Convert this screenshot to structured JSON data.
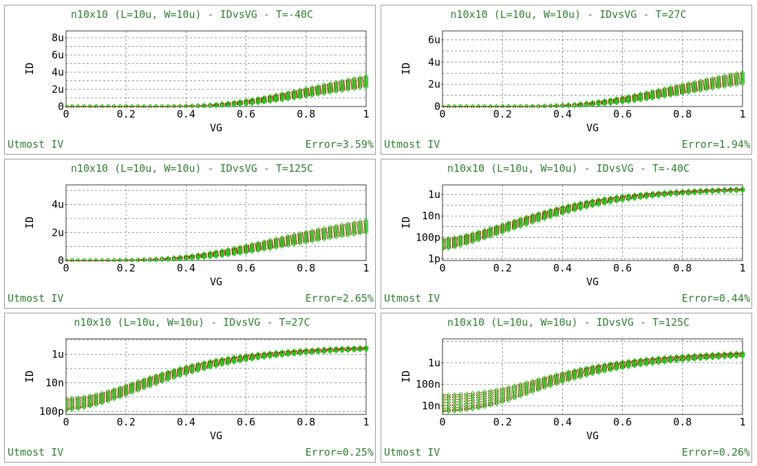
{
  "colors": {
    "measured": "#22cc22",
    "simulated": "#cc0000",
    "text_green": "#2e7d2e",
    "frame": "#555555",
    "grid": "#777777"
  },
  "chart_data": [
    {
      "type": "scatter",
      "title": "n10x10 (L=10u, W=10u) - IDvsVG - T=-40C",
      "xlabel": "VG",
      "ylabel": "ID",
      "xlim": [
        0,
        1
      ],
      "ylim": [
        0,
        8.8e-06
      ],
      "yscale": "linear",
      "xticks": [
        "0",
        "0.2",
        "0.4",
        "0.6",
        "0.8",
        "1"
      ],
      "yticks": [
        {
          "value": 0,
          "label": "0"
        },
        {
          "value": 2e-06,
          "label": "2u"
        },
        {
          "value": 4e-06,
          "label": "4u"
        },
        {
          "value": 6e-06,
          "label": "6u"
        },
        {
          "value": 8e-06,
          "label": "8u"
        }
      ],
      "grid": true,
      "model": {
        "vt": 0.43,
        "n": 0.045,
        "k": 1.5e-05,
        "lo": 6.2e-06,
        "hi": 8e-06
      },
      "footer_left": "Utmost IV",
      "footer_right": "Error=3.59%"
    },
    {
      "type": "scatter",
      "title": "n10x10 (L=10u, W=10u) - IDvsVG - T=27C",
      "xlabel": "VG",
      "ylabel": "ID",
      "xlim": [
        0,
        1
      ],
      "ylim": [
        0,
        6.8e-06
      ],
      "yscale": "linear",
      "xticks": [
        "0",
        "0.2",
        "0.4",
        "0.6",
        "0.8",
        "1"
      ],
      "yticks": [
        {
          "value": 0,
          "label": "0"
        },
        {
          "value": 2e-06,
          "label": "2u"
        },
        {
          "value": 4e-06,
          "label": "4u"
        },
        {
          "value": 6e-06,
          "label": "6u"
        }
      ],
      "grid": true,
      "model": {
        "vt": 0.38,
        "n": 0.05,
        "k": 1.2e-05,
        "lo": 5e-06,
        "hi": 6.4e-06
      },
      "footer_left": "Utmost IV",
      "footer_right": "Error=1.94%"
    },
    {
      "type": "scatter",
      "title": "n10x10 (L=10u, W=10u) - IDvsVG - T=125C",
      "xlabel": "VG",
      "ylabel": "ID",
      "xlim": [
        0,
        1
      ],
      "ylim": [
        0,
        5.4e-06
      ],
      "yscale": "linear",
      "xticks": [
        "0",
        "0.2",
        "0.4",
        "0.6",
        "0.8",
        "1"
      ],
      "yticks": [
        {
          "value": 0,
          "label": "0"
        },
        {
          "value": 2e-06,
          "label": "2u"
        },
        {
          "value": 4e-06,
          "label": "4u"
        }
      ],
      "grid": true,
      "model": {
        "vt": 0.3,
        "n": 0.06,
        "k": 1e-05,
        "lo": 4.3e-06,
        "hi": 5.3e-06
      },
      "footer_left": "Utmost IV",
      "footer_right": "Error=2.65%"
    },
    {
      "type": "scatter",
      "title": "n10x10 (L=10u, W=10u) - IDvsVG - T=-40C",
      "xlabel": "VG",
      "ylabel": "ID",
      "xlim": [
        0,
        1
      ],
      "ylim": [
        7e-13,
        8e-06
      ],
      "yscale": "log",
      "xticks": [
        "0",
        "0.2",
        "0.4",
        "0.6",
        "0.8",
        "1"
      ],
      "yticks": [
        {
          "value": 1e-12,
          "label": "1p"
        },
        {
          "value": 1e-10,
          "label": "100p"
        },
        {
          "value": 1e-08,
          "label": "10n"
        },
        {
          "value": 1e-06,
          "label": "1u"
        }
      ],
      "grid": true,
      "model": {
        "vt": 0.43,
        "n": 0.045,
        "k": 1.5e-05,
        "lo": 4.6e-12,
        "hi": 4.6e-11,
        "sat_lo": 6.2e-06,
        "sat_hi": 8e-06
      },
      "footer_left": "Utmost IV",
      "footer_right": "Error=0.44%"
    },
    {
      "type": "scatter",
      "title": "n10x10 (L=10u, W=10u) - IDvsVG - T=27C",
      "xlabel": "VG",
      "ylabel": "ID",
      "xlim": [
        0,
        1
      ],
      "ylim": [
        6e-11,
        1.2e-05
      ],
      "yscale": "log",
      "xticks": [
        "0",
        "0.2",
        "0.4",
        "0.6",
        "0.8",
        "1"
      ],
      "yticks": [
        {
          "value": 1e-10,
          "label": "100p"
        },
        {
          "value": 1e-08,
          "label": "10n"
        },
        {
          "value": 1e-06,
          "label": "1u"
        }
      ],
      "grid": true,
      "model": {
        "vt": 0.38,
        "n": 0.05,
        "k": 1.2e-05,
        "lo": 1e-10,
        "hi": 6e-10,
        "sat_lo": 5e-06,
        "sat_hi": 6.4e-06
      },
      "footer_left": "Utmost IV",
      "footer_right": "Error=0.25%"
    },
    {
      "type": "scatter",
      "title": "n10x10 (L=10u, W=10u) - IDvsVG - T=125C",
      "xlabel": "VG",
      "ylabel": "ID",
      "xlim": [
        0,
        1
      ],
      "ylim": [
        4e-09,
        1.3e-05
      ],
      "yscale": "log",
      "xticks": [
        "0",
        "0.2",
        "0.4",
        "0.6",
        "0.8",
        "1"
      ],
      "yticks": [
        {
          "value": 1e-08,
          "label": "10n"
        },
        {
          "value": 1e-07,
          "label": "100n"
        },
        {
          "value": 1e-06,
          "label": "1u"
        }
      ],
      "grid": true,
      "model": {
        "vt": 0.3,
        "n": 0.06,
        "k": 1e-05,
        "lo": 5e-09,
        "hi": 3e-08,
        "sat_lo": 4.3e-06,
        "sat_hi": 5.3e-06
      },
      "footer_left": "Utmost IV",
      "footer_right": "Error=0.26%"
    }
  ]
}
